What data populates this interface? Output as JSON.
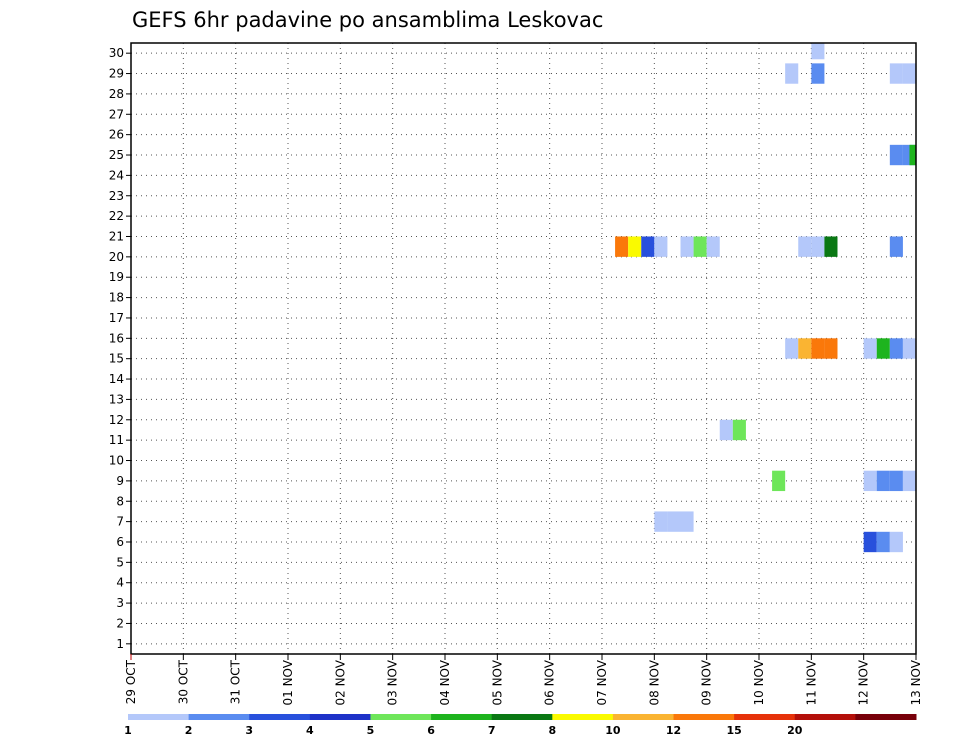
{
  "chart_data": {
    "type": "heatmap",
    "title": "GEFS 6hr padavine po ansamblima Leskovac",
    "xlabel": "",
    "ylabel": "",
    "x_tick_labels": [
      "29 OCT",
      "30 OCT",
      "31 OCT",
      "01 NOV",
      "02 NOV",
      "03 NOV",
      "04 NOV",
      "05 NOV",
      "06 NOV",
      "07 NOV",
      "08 NOV",
      "09 NOV",
      "10 NOV",
      "11 NOV",
      "12 NOV",
      "13 NOV"
    ],
    "x_steps_per_day": 4,
    "x_range_steps": [
      0,
      60
    ],
    "y_tick_labels": [
      "1",
      "2",
      "3",
      "4",
      "5",
      "6",
      "7",
      "8",
      "9",
      "10",
      "11",
      "12",
      "13",
      "14",
      "15",
      "16",
      "17",
      "18",
      "19",
      "20",
      "21",
      "22",
      "23",
      "24",
      "25",
      "26",
      "27",
      "28",
      "29",
      "30"
    ],
    "y_range_members": [
      0.5,
      30.5
    ],
    "grid": true,
    "grid_style": "dotted",
    "colorbar": {
      "labels": [
        "1",
        "2",
        "3",
        "4",
        "5",
        "6",
        "7",
        "8",
        "10",
        "12",
        "15",
        "20"
      ],
      "colors": [
        "#b4c8fa",
        "#5a8cf0",
        "#2850dc",
        "#1e32c8",
        "#6ee65a",
        "#1eb41e",
        "#0a7814",
        "#fafa00",
        "#fab432",
        "#fa780a",
        "#e6320a",
        "#b40f0a",
        "#78000a"
      ]
    },
    "cells": [
      {
        "step": 52,
        "member": 30.2,
        "color": "#b4c8fa"
      },
      {
        "step": 50,
        "member": 29,
        "color": "#b4c8fa"
      },
      {
        "step": 52,
        "member": 29,
        "color": "#5a8cf0"
      },
      {
        "step": 59,
        "member": 29,
        "color": "#b4c8fa"
      },
      {
        "step": 58,
        "member": 29,
        "color": "#b4c8fa"
      },
      {
        "step": 59,
        "member": 25,
        "color": "#5a8cf0"
      },
      {
        "step": 58,
        "member": 25,
        "color": "#5a8cf0"
      },
      {
        "step": 59.5,
        "member": 25,
        "color": "#1eb41e"
      },
      {
        "step": 37,
        "member": 20.5,
        "color": "#fa780a"
      },
      {
        "step": 38,
        "member": 20.5,
        "color": "#fafa00"
      },
      {
        "step": 39,
        "member": 20.5,
        "color": "#2850dc"
      },
      {
        "step": 40,
        "member": 20.5,
        "color": "#b4c8fa"
      },
      {
        "step": 42,
        "member": 20.5,
        "color": "#b4c8fa"
      },
      {
        "step": 43,
        "member": 20.5,
        "color": "#6ee65a"
      },
      {
        "step": 44,
        "member": 20.5,
        "color": "#b4c8fa"
      },
      {
        "step": 51,
        "member": 20.5,
        "color": "#b4c8fa"
      },
      {
        "step": 52,
        "member": 20.5,
        "color": "#b4c8fa"
      },
      {
        "step": 53,
        "member": 20.5,
        "color": "#0a7814"
      },
      {
        "step": 58,
        "member": 20.5,
        "color": "#5a8cf0"
      },
      {
        "step": 50,
        "member": 15.5,
        "color": "#b4c8fa"
      },
      {
        "step": 51,
        "member": 15.5,
        "color": "#fab432"
      },
      {
        "step": 52,
        "member": 15.5,
        "color": "#fa780a"
      },
      {
        "step": 53,
        "member": 15.5,
        "color": "#fa780a"
      },
      {
        "step": 56,
        "member": 15.5,
        "color": "#b4c8fa"
      },
      {
        "step": 57,
        "member": 15.5,
        "color": "#1eb41e"
      },
      {
        "step": 58,
        "member": 15.5,
        "color": "#5a8cf0"
      },
      {
        "step": 59,
        "member": 15.5,
        "color": "#b4c8fa"
      },
      {
        "step": 45,
        "member": 11.5,
        "color": "#b4c8fa"
      },
      {
        "step": 46,
        "member": 11.5,
        "color": "#6ee65a"
      },
      {
        "step": 49,
        "member": 9,
        "color": "#6ee65a"
      },
      {
        "step": 56,
        "member": 9,
        "color": "#b4c8fa"
      },
      {
        "step": 57,
        "member": 9,
        "color": "#5a8cf0"
      },
      {
        "step": 58,
        "member": 9,
        "color": "#5a8cf0"
      },
      {
        "step": 59,
        "member": 9,
        "color": "#b4c8fa"
      },
      {
        "step": 40,
        "member": 7,
        "color": "#b4c8fa"
      },
      {
        "step": 41,
        "member": 7,
        "color": "#b4c8fa"
      },
      {
        "step": 42,
        "member": 7,
        "color": "#b4c8fa"
      },
      {
        "step": 56,
        "member": 6,
        "color": "#2850dc"
      },
      {
        "step": 57,
        "member": 6,
        "color": "#5a8cf0"
      },
      {
        "step": 58,
        "member": 6,
        "color": "#b4c8fa"
      }
    ]
  }
}
